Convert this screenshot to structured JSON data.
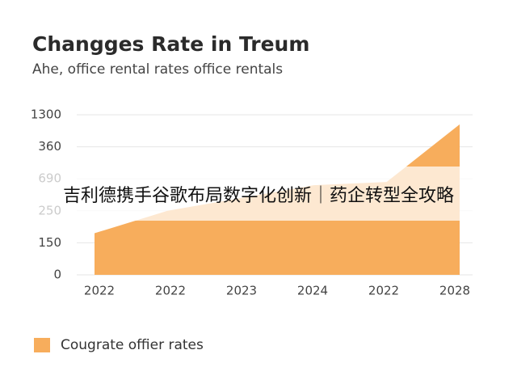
{
  "chart_data": {
    "type": "area",
    "title": "Changges Rate in Treum",
    "subtitle": "Ahe, office rental rates office rentals",
    "categories": [
      "2022",
      "2022",
      "2023",
      "2024",
      "2022",
      "2028"
    ],
    "series": [
      {
        "name": "Cougrate offier rates",
        "color": "#f7ad5c",
        "values": [
          1.3,
          2.0,
          2.4,
          2.8,
          2.9,
          4.7
        ]
      }
    ],
    "ylim": [
      0,
      5
    ],
    "yticks": [
      {
        "value": 0,
        "label": "0"
      },
      {
        "value": 1,
        "label": "150"
      },
      {
        "value": 2,
        "label": "250"
      },
      {
        "value": 3,
        "label": "690"
      },
      {
        "value": 4,
        "label": "360"
      },
      {
        "value": 5,
        "label": "1300"
      }
    ],
    "grid": true,
    "legend": "bottom-left",
    "overlay_text": "吉利德携手谷歌布局数字化创新｜药企转型全攻略"
  }
}
